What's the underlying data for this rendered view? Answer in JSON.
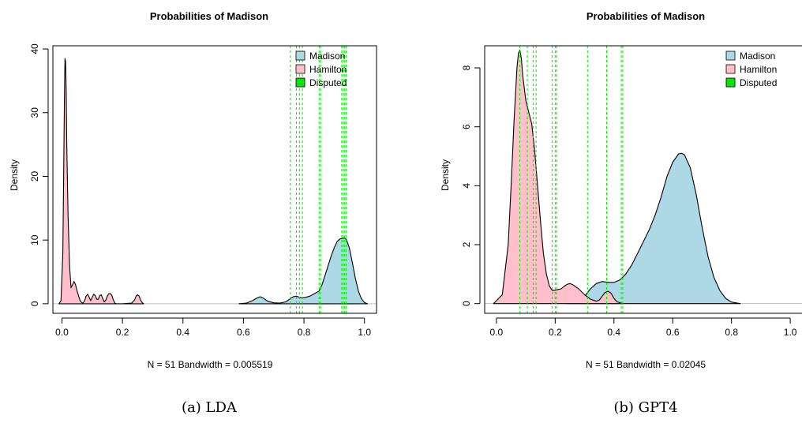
{
  "chart_data": [
    {
      "type": "area",
      "title": "Probabilities of Madison",
      "xlabel": "N = 51   Bandwidth = 0.005519",
      "ylabel": "Density",
      "caption": "(a) LDA",
      "xlim": [
        -0.03,
        1.04
      ],
      "ylim": [
        -1.5,
        40.5
      ],
      "xticks": [
        0.0,
        0.2,
        0.4,
        0.6,
        0.8,
        1.0
      ],
      "xtick_labels": [
        "0.0",
        "0.2",
        "0.4",
        "0.6",
        "0.8",
        "1.0"
      ],
      "yticks": [
        0,
        10,
        20,
        30,
        40
      ],
      "ytick_labels": [
        "0",
        "10",
        "20",
        "30",
        "40"
      ],
      "legend_position": "top-right",
      "series": [
        {
          "name": "Madison",
          "color": "#add8e6",
          "x": [
            0.585,
            0.61,
            0.63,
            0.645,
            0.655,
            0.665,
            0.68,
            0.7,
            0.72,
            0.74,
            0.755,
            0.765,
            0.775,
            0.785,
            0.795,
            0.805,
            0.82,
            0.835,
            0.85,
            0.86,
            0.87,
            0.88,
            0.89,
            0.9,
            0.91,
            0.92,
            0.93,
            0.935,
            0.94,
            0.95,
            0.96,
            0.97,
            0.98,
            0.99,
            1.0,
            1.01
          ],
          "y": [
            0,
            0.1,
            0.5,
            0.9,
            1.1,
            0.9,
            0.4,
            0.15,
            0.1,
            0.3,
            0.8,
            1.1,
            1.2,
            1.0,
            0.9,
            1.0,
            1.2,
            1.6,
            2.0,
            3.0,
            4.5,
            6.0,
            7.5,
            8.8,
            9.8,
            10.2,
            10.3,
            10.3,
            10.1,
            8.8,
            6.5,
            4.0,
            2.0,
            0.8,
            0.2,
            0
          ]
        },
        {
          "name": "Hamilton",
          "color": "#ffc0cb",
          "x": [
            -0.01,
            -0.003,
            0.003,
            0.006,
            0.008,
            0.01,
            0.012,
            0.014,
            0.016,
            0.02,
            0.025,
            0.03,
            0.035,
            0.04,
            0.045,
            0.05,
            0.055,
            0.06,
            0.065,
            0.07,
            0.075,
            0.08,
            0.085,
            0.09,
            0.095,
            0.1,
            0.105,
            0.11,
            0.115,
            0.12,
            0.125,
            0.13,
            0.135,
            0.14,
            0.145,
            0.15,
            0.155,
            0.16,
            0.165,
            0.17,
            0.175,
            0.18,
            0.2,
            0.23,
            0.24,
            0.245,
            0.25,
            0.255,
            0.26,
            0.265,
            0.27
          ],
          "y": [
            0,
            0.5,
            8.0,
            22.0,
            32.0,
            38.5,
            38.0,
            33.0,
            25.0,
            14.0,
            6.0,
            2.5,
            3.0,
            3.5,
            3.0,
            2.0,
            1.2,
            0.5,
            0.2,
            0.1,
            0.5,
            1.2,
            1.5,
            1.0,
            0.5,
            1.0,
            1.5,
            1.3,
            0.7,
            0.7,
            1.3,
            1.4,
            0.8,
            0.3,
            0.6,
            1.2,
            1.6,
            1.6,
            1.3,
            0.6,
            0.1,
            0,
            0,
            0.1,
            0.6,
            1.2,
            1.4,
            1.2,
            0.6,
            0.2,
            0
          ]
        }
      ],
      "disputed_lines": {
        "name": "Disputed",
        "color": "#00e600",
        "x": [
          0.755,
          0.775,
          0.785,
          0.795,
          0.85,
          0.855,
          0.925,
          0.93,
          0.935,
          0.94
        ]
      }
    },
    {
      "type": "area",
      "title": "Probabilities of Madison",
      "xlabel": "N = 51   Bandwidth = 0.02045",
      "ylabel": "Density",
      "caption": "(b) GPT4",
      "xlim": [
        -0.04,
        1.04
      ],
      "ylim": [
        -0.33,
        8.75
      ],
      "xticks": [
        0.0,
        0.2,
        0.4,
        0.6,
        0.8,
        1.0
      ],
      "xtick_labels": [
        "0.0",
        "0.2",
        "0.4",
        "0.6",
        "0.8",
        "1.0"
      ],
      "yticks": [
        0,
        2,
        4,
        6,
        8
      ],
      "ytick_labels": [
        "0",
        "2",
        "4",
        "6",
        "8"
      ],
      "legend_position": "top-right",
      "series": [
        {
          "name": "Madison",
          "color": "#add8e6",
          "x": [
            0.24,
            0.27,
            0.3,
            0.32,
            0.34,
            0.36,
            0.38,
            0.4,
            0.42,
            0.44,
            0.46,
            0.48,
            0.5,
            0.52,
            0.54,
            0.56,
            0.58,
            0.6,
            0.62,
            0.63,
            0.64,
            0.66,
            0.68,
            0.7,
            0.72,
            0.74,
            0.76,
            0.78,
            0.8,
            0.83
          ],
          "y": [
            0,
            0.05,
            0.25,
            0.5,
            0.68,
            0.75,
            0.72,
            0.72,
            0.8,
            1.0,
            1.3,
            1.7,
            2.1,
            2.5,
            3.0,
            3.6,
            4.3,
            4.8,
            5.08,
            5.1,
            5.05,
            4.6,
            3.7,
            2.6,
            1.6,
            0.9,
            0.45,
            0.18,
            0.05,
            0
          ]
        },
        {
          "name": "Hamilton",
          "color": "#ffc0cb",
          "x": [
            -0.01,
            0.02,
            0.04,
            0.05,
            0.06,
            0.07,
            0.075,
            0.08,
            0.085,
            0.09,
            0.1,
            0.11,
            0.12,
            0.13,
            0.14,
            0.15,
            0.16,
            0.17,
            0.18,
            0.19,
            0.2,
            0.21,
            0.22,
            0.23,
            0.24,
            0.25,
            0.26,
            0.28,
            0.3,
            0.32,
            0.34,
            0.35,
            0.36,
            0.37,
            0.38,
            0.39,
            0.4,
            0.41,
            0.43
          ],
          "y": [
            0,
            0.3,
            2.0,
            4.0,
            6.2,
            8.0,
            8.5,
            8.6,
            8.3,
            7.7,
            6.9,
            6.5,
            6.1,
            5.2,
            4.0,
            2.8,
            1.7,
            1.0,
            0.6,
            0.45,
            0.45,
            0.48,
            0.5,
            0.58,
            0.65,
            0.68,
            0.64,
            0.5,
            0.3,
            0.15,
            0.08,
            0.12,
            0.25,
            0.38,
            0.42,
            0.35,
            0.18,
            0.06,
            0
          ]
        }
      ],
      "disputed_lines": {
        "name": "Disputed",
        "color": "#00e600",
        "x": [
          0.08,
          0.105,
          0.125,
          0.135,
          0.19,
          0.2,
          0.205,
          0.31,
          0.375,
          0.425,
          0.43
        ]
      }
    }
  ]
}
